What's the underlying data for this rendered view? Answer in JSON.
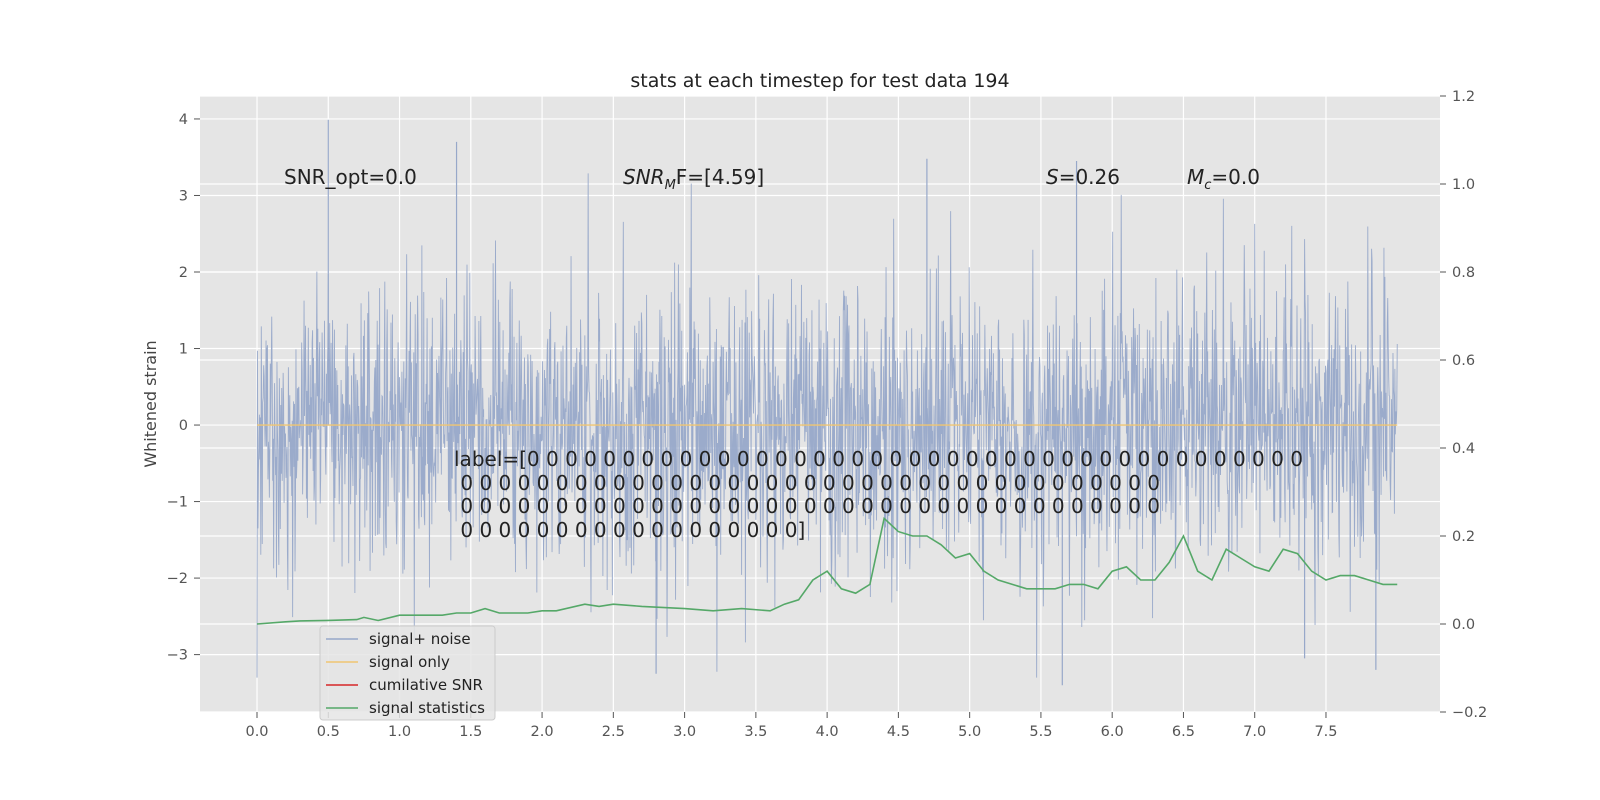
{
  "chart_data": {
    "type": "line",
    "title": "stats at each timestep for test data 194",
    "xlabel": "",
    "ylabel": "Whitened strain",
    "xlim": [
      -0.4,
      8.3
    ],
    "ylim": [
      -3.75,
      4.3
    ],
    "y2lim": [
      -0.2,
      1.2
    ],
    "x_ticks": [
      "0.0",
      "0.5",
      "1.0",
      "1.5",
      "2.0",
      "2.5",
      "3.0",
      "3.5",
      "4.0",
      "4.5",
      "5.0",
      "5.5",
      "6.0",
      "6.5",
      "7.0",
      "7.5"
    ],
    "y_ticks": [
      "4",
      "3",
      "2",
      "1",
      "0",
      "−1",
      "−2",
      "−3"
    ],
    "y2_ticks": [
      "1.2",
      "1.0",
      "0.8",
      "0.6",
      "0.4",
      "0.2",
      "0.0",
      "−0.2"
    ],
    "grid": true,
    "legend_position": "lower-left",
    "series": [
      {
        "name": "signal+ noise",
        "color": "#97a8c9",
        "axis": "left",
        "note": "dense noise trace, approx 1 std, peaks near 4 and -3.4",
        "x_range": [
          0.0,
          8.0
        ],
        "max": 3.99,
        "min": -3.4
      },
      {
        "name": "signal only",
        "color": "#f0c572",
        "axis": "left",
        "x": [
          0.0,
          8.0
        ],
        "values": [
          0.0,
          0.0
        ]
      },
      {
        "name": "cumilative SNR",
        "color": "#d62728",
        "axis": "right",
        "x": [],
        "values": []
      },
      {
        "name": "signal statistics",
        "color": "#55a868",
        "axis": "right",
        "x": [
          0.0,
          0.2,
          0.3,
          0.5,
          0.7,
          0.75,
          0.85,
          1.0,
          1.3,
          1.4,
          1.5,
          1.6,
          1.7,
          1.9,
          2.0,
          2.1,
          2.3,
          2.4,
          2.5,
          2.7,
          3.0,
          3.2,
          3.4,
          3.6,
          3.7,
          3.8,
          3.9,
          4.0,
          4.1,
          4.2,
          4.3,
          4.4,
          4.5,
          4.6,
          4.7,
          4.8,
          4.9,
          5.0,
          5.1,
          5.2,
          5.4,
          5.6,
          5.7,
          5.8,
          5.9,
          6.0,
          6.1,
          6.2,
          6.3,
          6.4,
          6.5,
          6.6,
          6.7,
          6.8,
          6.9,
          7.0,
          7.1,
          7.2,
          7.3,
          7.4,
          7.5,
          7.6,
          7.7,
          7.8,
          7.9,
          8.0
        ],
        "values": [
          0.0,
          0.005,
          0.007,
          0.008,
          0.01,
          0.015,
          0.008,
          0.02,
          0.02,
          0.025,
          0.025,
          0.035,
          0.025,
          0.025,
          0.03,
          0.03,
          0.045,
          0.04,
          0.045,
          0.04,
          0.035,
          0.03,
          0.035,
          0.03,
          0.045,
          0.055,
          0.1,
          0.12,
          0.08,
          0.07,
          0.09,
          0.24,
          0.21,
          0.2,
          0.2,
          0.18,
          0.15,
          0.16,
          0.12,
          0.1,
          0.08,
          0.08,
          0.09,
          0.09,
          0.08,
          0.12,
          0.13,
          0.1,
          0.1,
          0.14,
          0.2,
          0.12,
          0.1,
          0.17,
          0.15,
          0.13,
          0.12,
          0.17,
          0.16,
          0.12,
          0.1,
          0.11,
          0.11,
          0.1,
          0.09,
          0.09
        ]
      }
    ],
    "annotations": {
      "snr_opt": "SNR_opt=0.0",
      "snr_mf_sym": "SNR",
      "snr_mf_sub": "M",
      "snr_mf_rest": "F=[4.59]",
      "s_sym": "S",
      "s_rest": "=0.26",
      "mc_sym": "M",
      "mc_sub": "c",
      "mc_rest": "=0.0",
      "label_lines": [
        "label=[0 0 0 0 0 0 0 0 0 0 0 0 0 0 0 0 0 0 0 0 0 0 0 0 0 0 0 0 0 0 0 0 0 0 0 0 0 0 0 0 0",
        " 0 0 0 0 0 0 0 0 0 0 0 0 0 0 0 0 0 0 0 0 0 0 0 0 0 0 0 0 0 0 0 0 0 0 0 0 0",
        " 0 0 0 0 0 0 0 0 0 0 0 0 0 0 0 0 0 0 0 0 0 0 0 0 0 0 0 0 0 0 0 0 0 0 0 0 0",
        " 0 0 0 0 0 0 0 0 0 0 0 0 0 0 0 0 0 0]"
      ]
    }
  }
}
